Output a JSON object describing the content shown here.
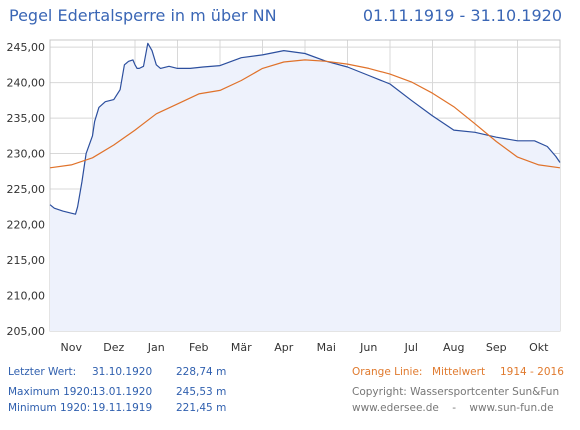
{
  "header": {
    "title": "Pegel Edertalsperre in m über NN",
    "period": "01.11.1919 - 31.10.1920"
  },
  "colors": {
    "series_1920": "#2c4f9e",
    "series_mean": "#e0722a",
    "fill": "#eef2fc",
    "grid": "#d8d8d8",
    "title": "#3a66b5"
  },
  "footer": {
    "last_label": "Letzter Wert:",
    "last_date": "31.10.1920",
    "last_value": "228,74 m",
    "max_label": "Maximum 1920:",
    "max_date": "13.01.1920",
    "max_value": "245,53 m",
    "min_label": "Minimum  1920:",
    "min_date": "19.11.1919",
    "min_value": "221,45 m",
    "orange_label": "Orange Linie:",
    "orange_desc": "Mittelwert",
    "orange_years": "1914 - 2016",
    "copyright": "Copyright: Wassersportcenter Sun&Fun",
    "websites": "www.edersee.de    -    www.sun-fun.de"
  },
  "chart_data": {
    "type": "line",
    "ylim": [
      205,
      246
    ],
    "yticks": [
      205,
      210,
      215,
      220,
      225,
      230,
      235,
      240,
      245
    ],
    "ytick_labels": [
      "205,00",
      "210,00",
      "215,00",
      "220,00",
      "225,00",
      "230,00",
      "235,00",
      "240,00",
      "245,00"
    ],
    "xlim": [
      0,
      12
    ],
    "month_labels": [
      "Nov",
      "Dez",
      "Jan",
      "Feb",
      "Mär",
      "Apr",
      "Mai",
      "Jun",
      "Jul",
      "Aug",
      "Sep",
      "Okt"
    ],
    "grid": true,
    "series": [
      {
        "name": "",
        "fill": true,
        "x": [
          0,
          0.1,
          0.3,
          0.5,
          0.6,
          0.65,
          0.75,
          0.85,
          1.0,
          1.05,
          1.15,
          1.3,
          1.5,
          1.65,
          1.75,
          1.85,
          1.95,
          2.0,
          2.05,
          2.1,
          2.2,
          2.3,
          2.4,
          2.5,
          2.6,
          2.8,
          3.0,
          3.3,
          3.6,
          4.0,
          4.5,
          5.0,
          5.5,
          6.0,
          6.5,
          7.0,
          7.5,
          8.0,
          8.5,
          9.0,
          9.5,
          10.0,
          10.5,
          11.0,
          11.4,
          11.7,
          11.9,
          12.0
        ],
        "y": [
          222.8,
          222.3,
          221.9,
          221.6,
          221.45,
          222.5,
          226.0,
          230.0,
          232.5,
          234.5,
          236.5,
          237.3,
          237.6,
          239.0,
          242.5,
          243.0,
          243.2,
          242.5,
          242.0,
          242.0,
          242.3,
          245.53,
          244.5,
          242.5,
          242.0,
          242.3,
          242.0,
          242.0,
          242.2,
          242.4,
          243.5,
          243.9,
          244.5,
          244.1,
          243.0,
          242.2,
          241.0,
          239.8,
          237.5,
          235.3,
          233.3,
          233.0,
          232.3,
          231.8,
          231.8,
          231.0,
          229.6,
          228.74
        ]
      },
      {
        "name": "",
        "fill": false,
        "x": [
          0,
          0.5,
          1.0,
          1.5,
          2.0,
          2.5,
          3.0,
          3.5,
          4.0,
          4.5,
          5.0,
          5.5,
          6.0,
          6.5,
          7.0,
          7.5,
          8.0,
          8.5,
          9.0,
          9.5,
          10.0,
          10.5,
          11.0,
          11.5,
          12.0
        ],
        "y": [
          228.0,
          228.4,
          229.4,
          231.2,
          233.3,
          235.6,
          237.0,
          238.4,
          238.9,
          240.3,
          242.0,
          242.9,
          243.2,
          243.0,
          242.6,
          242.0,
          241.2,
          240.1,
          238.5,
          236.6,
          234.2,
          231.7,
          229.5,
          228.4,
          228.0
        ]
      }
    ]
  }
}
